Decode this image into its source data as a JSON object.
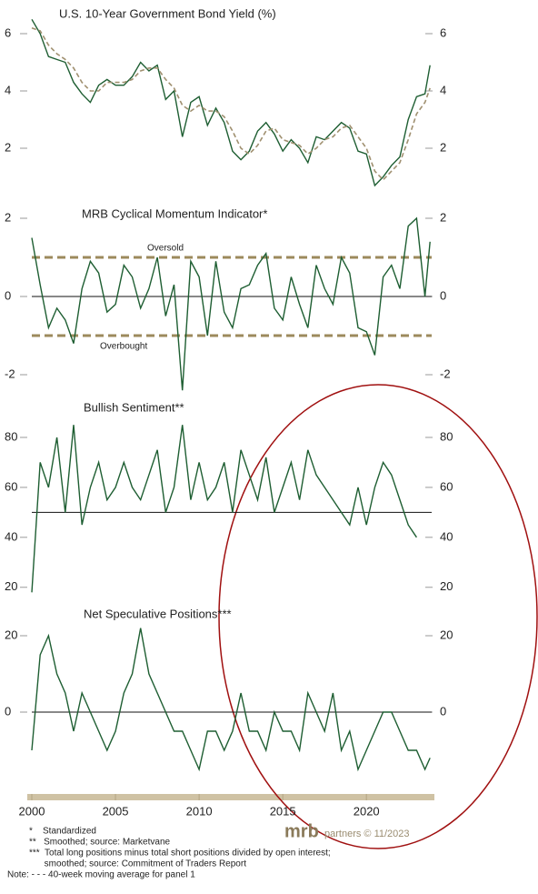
{
  "chart_data": [
    {
      "type": "line",
      "title": "U.S. 10-Year Government Bond Yield (%)",
      "x": [
        2000,
        2000.5,
        2001,
        2001.5,
        2002,
        2002.5,
        2003,
        2003.5,
        2004,
        2004.5,
        2005,
        2005.5,
        2006,
        2006.5,
        2007,
        2007.5,
        2008,
        2008.5,
        2009,
        2009.5,
        2010,
        2010.5,
        2011,
        2011.5,
        2012,
        2012.5,
        2013,
        2013.5,
        2014,
        2014.5,
        2015,
        2015.5,
        2016,
        2016.5,
        2017,
        2017.5,
        2018,
        2018.5,
        2019,
        2019.5,
        2020,
        2020.5,
        2021,
        2021.5,
        2022,
        2022.5,
        2023,
        2023.5,
        2023.8
      ],
      "series": [
        {
          "color": "#1e5e32",
          "style": "solid",
          "values": [
            6.5,
            6.0,
            5.2,
            5.1,
            5.0,
            4.3,
            3.9,
            3.6,
            4.2,
            4.4,
            4.2,
            4.2,
            4.5,
            5.0,
            4.7,
            4.9,
            3.7,
            4.0,
            2.4,
            3.6,
            3.8,
            2.8,
            3.4,
            2.9,
            1.9,
            1.6,
            1.9,
            2.6,
            2.9,
            2.5,
            1.9,
            2.3,
            2.0,
            1.5,
            2.4,
            2.3,
            2.6,
            2.9,
            2.7,
            1.9,
            1.8,
            0.7,
            1.0,
            1.4,
            1.7,
            3.0,
            3.8,
            3.9,
            4.9
          ]
        },
        {
          "color": "#a09070",
          "style": "dashed",
          "values": [
            6.2,
            6.1,
            5.6,
            5.3,
            5.1,
            4.8,
            4.3,
            4.0,
            4.0,
            4.3,
            4.3,
            4.3,
            4.4,
            4.7,
            4.8,
            4.8,
            4.4,
            4.1,
            3.5,
            3.3,
            3.5,
            3.3,
            3.3,
            3.1,
            2.6,
            2.0,
            1.8,
            2.1,
            2.6,
            2.7,
            2.3,
            2.2,
            2.1,
            1.8,
            2.0,
            2.3,
            2.4,
            2.7,
            2.8,
            2.4,
            2.0,
            1.2,
            0.9,
            1.2,
            1.5,
            2.3,
            3.2,
            3.6,
            4.1
          ]
        }
      ],
      "xlim": [
        2000,
        2023.9
      ],
      "ylim": [
        0.4,
        6.9
      ],
      "yticks": [
        2,
        4,
        6
      ]
    },
    {
      "type": "line",
      "title": "MRB Cyclical Momentum Indicator*",
      "x": [
        2000,
        2000.5,
        2001,
        2001.5,
        2002,
        2002.5,
        2003,
        2003.5,
        2004,
        2004.5,
        2005,
        2005.5,
        2006,
        2006.5,
        2007,
        2007.5,
        2008,
        2008.5,
        2009,
        2009.5,
        2010,
        2010.5,
        2011,
        2011.5,
        2012,
        2012.5,
        2013,
        2013.5,
        2014,
        2014.5,
        2015,
        2015.5,
        2016,
        2016.5,
        2017,
        2017.5,
        2018,
        2018.5,
        2019,
        2019.5,
        2020,
        2020.5,
        2021,
        2021.5,
        2022,
        2022.5,
        2023,
        2023.5,
        2023.8
      ],
      "series": [
        {
          "color": "#1e5e32",
          "style": "solid",
          "values": [
            1.5,
            0.3,
            -0.8,
            -0.3,
            -0.6,
            -1.2,
            0.2,
            0.9,
            0.6,
            -0.4,
            -0.2,
            0.8,
            0.5,
            -0.3,
            0.2,
            1.0,
            -0.5,
            0.3,
            -2.4,
            0.9,
            0.5,
            -1.0,
            0.9,
            -0.4,
            -0.8,
            0.2,
            0.3,
            0.8,
            1.1,
            -0.3,
            -0.6,
            0.5,
            -0.2,
            -0.8,
            0.8,
            0.2,
            -0.2,
            1.0,
            0.6,
            -0.8,
            -0.9,
            -1.5,
            0.5,
            0.8,
            0.2,
            1.8,
            2.0,
            0.0,
            1.4
          ]
        }
      ],
      "hlines": [
        {
          "value": 1,
          "style": "dashed",
          "label": "Oversold"
        },
        {
          "value": -1,
          "style": "dashed",
          "label": "Overbought"
        },
        {
          "value": 0,
          "style": "solid"
        }
      ],
      "xlim": [
        2000,
        2023.9
      ],
      "ylim": [
        -2.5,
        2.2
      ],
      "yticks": [
        -2,
        0,
        2
      ]
    },
    {
      "type": "line",
      "title": "Bullish Sentiment**",
      "x": [
        2000,
        2000.5,
        2001,
        2001.5,
        2002,
        2002.5,
        2003,
        2003.5,
        2004,
        2004.5,
        2005,
        2005.5,
        2006,
        2006.5,
        2007,
        2007.5,
        2008,
        2008.5,
        2009,
        2009.5,
        2010,
        2010.5,
        2011,
        2011.5,
        2012,
        2012.5,
        2013,
        2013.5,
        2014,
        2014.5,
        2015,
        2015.5,
        2016,
        2016.5,
        2017,
        2017.5,
        2018,
        2018.5,
        2019,
        2019.5,
        2020,
        2020.5,
        2021,
        2021.5,
        2022,
        2022.5,
        2023,
        2023.5,
        2023.8
      ],
      "series": [
        {
          "color": "#1e5e32",
          "style": "solid",
          "values": [
            18,
            70,
            60,
            80,
            50,
            85,
            45,
            60,
            70,
            55,
            60,
            70,
            60,
            55,
            65,
            75,
            50,
            60,
            85,
            55,
            70,
            55,
            60,
            70,
            50,
            75,
            65,
            55,
            72,
            50,
            60,
            70,
            55,
            75,
            65,
            60,
            55,
            50,
            45,
            60,
            45,
            60,
            70,
            65,
            55,
            45,
            40,
            null,
            null
          ]
        }
      ],
      "hlines": [
        {
          "value": 50,
          "style": "solid"
        }
      ],
      "xlim": [
        2000,
        2023.9
      ],
      "ylim": [
        17,
        90
      ],
      "yticks": [
        20,
        40,
        60,
        80
      ]
    },
    {
      "type": "line",
      "title": "Net Speculative Positions***",
      "x": [
        2000,
        2000.5,
        2001,
        2001.5,
        2002,
        2002.5,
        2003,
        2003.5,
        2004,
        2004.5,
        2005,
        2005.5,
        2006,
        2006.5,
        2007,
        2007.5,
        2008,
        2008.5,
        2009,
        2009.5,
        2010,
        2010.5,
        2011,
        2011.5,
        2012,
        2012.5,
        2013,
        2013.5,
        2014,
        2014.5,
        2015,
        2015.5,
        2016,
        2016.5,
        2017,
        2017.5,
        2018,
        2018.5,
        2019,
        2019.5,
        2020,
        2020.5,
        2021,
        2021.5,
        2022,
        2022.5,
        2023,
        2023.5,
        2023.8
      ],
      "series": [
        {
          "color": "#1e5e32",
          "style": "solid",
          "values": [
            -10,
            15,
            20,
            10,
            5,
            -5,
            5,
            0,
            -5,
            -10,
            -5,
            5,
            10,
            22,
            10,
            5,
            0,
            -5,
            -5,
            -10,
            -15,
            -5,
            -5,
            -10,
            -5,
            5,
            -5,
            -5,
            -10,
            0,
            -5,
            -5,
            -10,
            5,
            0,
            -5,
            5,
            -10,
            -5,
            -15,
            -10,
            -5,
            0,
            0,
            -5,
            -10,
            -10,
            -15,
            -12
          ]
        }
      ],
      "hlines": [
        {
          "value": 0,
          "style": "solid"
        }
      ],
      "xlim": [
        2000,
        2023.9
      ],
      "ylim": [
        -20,
        27
      ],
      "yticks": [
        0,
        20
      ],
      "xticks": [
        2000,
        2005,
        2010,
        2015,
        2020
      ]
    }
  ],
  "logo": "mrb",
  "logo_text": "partners © 11/2023",
  "footnotes": [
    "*    Standardized",
    "**   Smoothed; source: Marketvane",
    "***  Total long positions minus total short positions divided by open interest;",
    "      smoothed; source: Commitment of Traders Report",
    "Note: - - - 40-week moving average for panel 1"
  ]
}
